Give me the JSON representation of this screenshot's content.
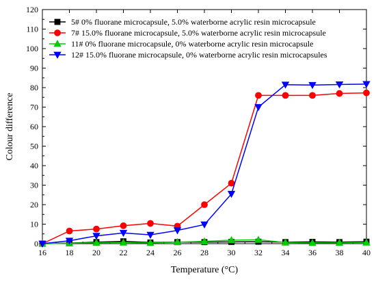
{
  "chart_data": {
    "type": "line",
    "xlabel": "Temperature (°C)",
    "ylabel": "Colour difference",
    "xlim": [
      16,
      40
    ],
    "ylim": [
      0,
      120
    ],
    "xticks": [
      16,
      18,
      20,
      22,
      24,
      26,
      28,
      30,
      32,
      34,
      36,
      38,
      40
    ],
    "yticks": [
      0,
      10,
      20,
      30,
      40,
      50,
      60,
      70,
      80,
      90,
      100,
      110,
      120
    ],
    "grid": false,
    "legend_position": "top-left",
    "x": [
      16,
      18,
      20,
      22,
      24,
      26,
      28,
      30,
      32,
      34,
      36,
      38,
      40
    ],
    "series": [
      {
        "name": "5# 0% fluorane microcapsule, 5.0% waterborne acrylic resin microcapsule",
        "color": "#000000",
        "marker": "square",
        "values": [
          0,
          0.3,
          0.8,
          1.2,
          0.6,
          0.8,
          0.8,
          0.9,
          1.0,
          0.8,
          0.9,
          0.8,
          1.0
        ]
      },
      {
        "name": "7# 15.0% fluorane microcapsule, 5.0% waterborne acrylic resin microcapsule",
        "color": "#ff0000",
        "marker": "circle",
        "values": [
          0,
          6.5,
          7.5,
          9.2,
          10.4,
          9.0,
          20.0,
          31.0,
          76.0,
          76.0,
          76.0,
          77.0,
          77.3
        ]
      },
      {
        "name": "11# 0% fluorane microcapsule, 0% waterborne acrylic resin microcapsule",
        "color": "#00cc00",
        "marker": "triangle-up",
        "values": [
          0,
          0.2,
          0.5,
          0.6,
          0.4,
          0.8,
          1.2,
          1.8,
          2.0,
          0.6,
          0.4,
          0.5,
          0.6
        ]
      },
      {
        "name": "12# 15.0% fluorane microcapsule, 0% waterborne acrylic resin microcapsules",
        "color": "#0000ff",
        "marker": "triangle-down",
        "values": [
          0,
          1.5,
          4.0,
          5.5,
          4.5,
          6.8,
          9.8,
          25.5,
          70.0,
          81.5,
          81.3,
          81.6,
          81.8
        ]
      }
    ]
  }
}
